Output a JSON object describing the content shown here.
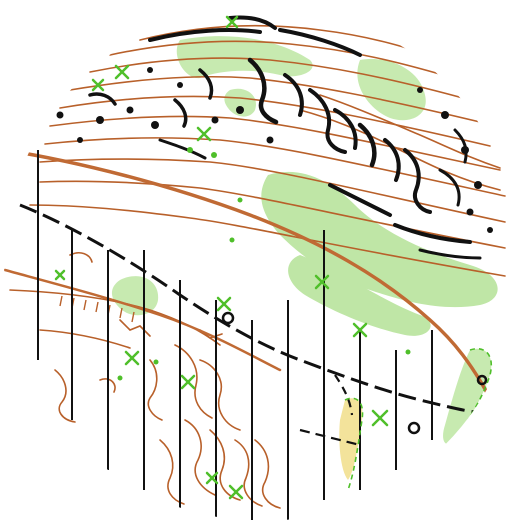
{
  "map": {
    "kind": "orienteering-map-excerpt",
    "shape": "circle",
    "colors": {
      "background": "#ffffff",
      "contour": "#b8602a",
      "trail": "#c06a34",
      "cliff": "#111111",
      "vegetation": "#bfe6a6",
      "vegetation_dark": "#a9dc8c",
      "feature_green": "#4fbf2a",
      "power_line": "#111111",
      "yellow": "#f3e39b"
    },
    "symbols": {
      "green_cross": "special-vegetation-feature",
      "black_circle": "pit-or-hole",
      "dashed_black_line": "footpath",
      "solid_black_verticals": "magnetic-north-lines"
    }
  }
}
